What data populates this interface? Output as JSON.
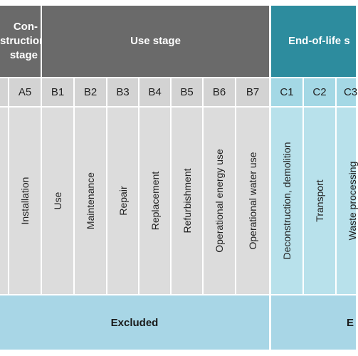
{
  "headers": {
    "construction": "Con-\nstruction\nstage",
    "use": "Use stage",
    "end_of_life": "End-of-life s"
  },
  "codes": [
    "A5",
    "B1",
    "B2",
    "B3",
    "B4",
    "B5",
    "B6",
    "B7",
    "C1",
    "C2",
    "C3"
  ],
  "modules": [
    "Installation",
    "Use",
    "Maintenance",
    "Repair",
    "Replacement",
    "Refurbishment",
    "Operational energy use",
    "Operational water use",
    "Deconstruction, demolition",
    "Transport",
    "Waste processing"
  ],
  "footer": {
    "left": "Excluded",
    "right": "E"
  }
}
